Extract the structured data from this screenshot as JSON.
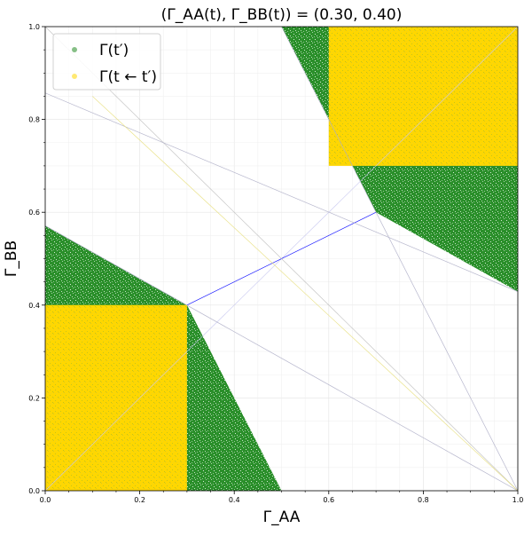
{
  "chart_data": {
    "type": "scatter",
    "title": "(Γ_AA(t), Γ_BB(t)) = (0.30, 0.40)",
    "xlabel": "Γ_AA",
    "ylabel": "Γ_BB",
    "xlim": [
      0,
      1
    ],
    "ylim": [
      0,
      1
    ],
    "x_ticks": [
      "0.0",
      "0.2",
      "0.4",
      "0.6",
      "0.8",
      "1.0"
    ],
    "y_ticks": [
      "0.0",
      "0.2",
      "0.4",
      "0.6",
      "0.8",
      "1.0"
    ],
    "grid": true,
    "legend_position": "top-left",
    "current_point": {
      "x": 0.3,
      "y": 0.4
    },
    "series": [
      {
        "name": "Γ(t′)",
        "color": "#228B22",
        "regions": [
          {
            "polygon": [
              [
                0,
                0
              ],
              [
                0.5,
                0
              ],
              [
                0.3,
                0.4
              ],
              [
                0,
                0.571
              ]
            ]
          },
          {
            "polygon": [
              [
                0.5,
                1
              ],
              [
                1,
                1
              ],
              [
                1,
                0.429
              ],
              [
                0.7,
                0.6
              ]
            ]
          }
        ]
      },
      {
        "name": "Γ(t ← t′)",
        "color": "#FFD700",
        "regions": [
          {
            "polygon": [
              [
                0,
                0
              ],
              [
                0.3,
                0
              ],
              [
                0.3,
                0.4
              ],
              [
                0,
                0.4
              ]
            ]
          },
          {
            "polygon": [
              [
                0.6,
                0.7
              ],
              [
                1,
                0.7
              ],
              [
                1,
                1
              ],
              [
                0.6,
                1
              ]
            ]
          }
        ]
      }
    ],
    "guide_lines": [
      {
        "x": [
          0,
          1
        ],
        "y": [
          0,
          1
        ],
        "color": "#c8c8f0"
      },
      {
        "x": [
          0.3,
          0.7
        ],
        "y": [
          0.4,
          0.6
        ],
        "color": "#0000ff"
      },
      {
        "x": [
          0,
          1
        ],
        "y": [
          1,
          0
        ],
        "color": "#c0c0c0"
      },
      {
        "x": [
          0,
          1
        ],
        "y": [
          0.571,
          0
        ],
        "color": "#b0b0c8"
      },
      {
        "x": [
          0.5,
          1
        ],
        "y": [
          1,
          0
        ],
        "color": "#b0b0c8"
      },
      {
        "x": [
          0,
          1
        ],
        "y": [
          0.857,
          0.429
        ],
        "color": "#b0b0c8"
      },
      {
        "x": [
          0.1,
          1
        ],
        "y": [
          0.85,
          0
        ],
        "color": "#e8e080"
      }
    ]
  }
}
